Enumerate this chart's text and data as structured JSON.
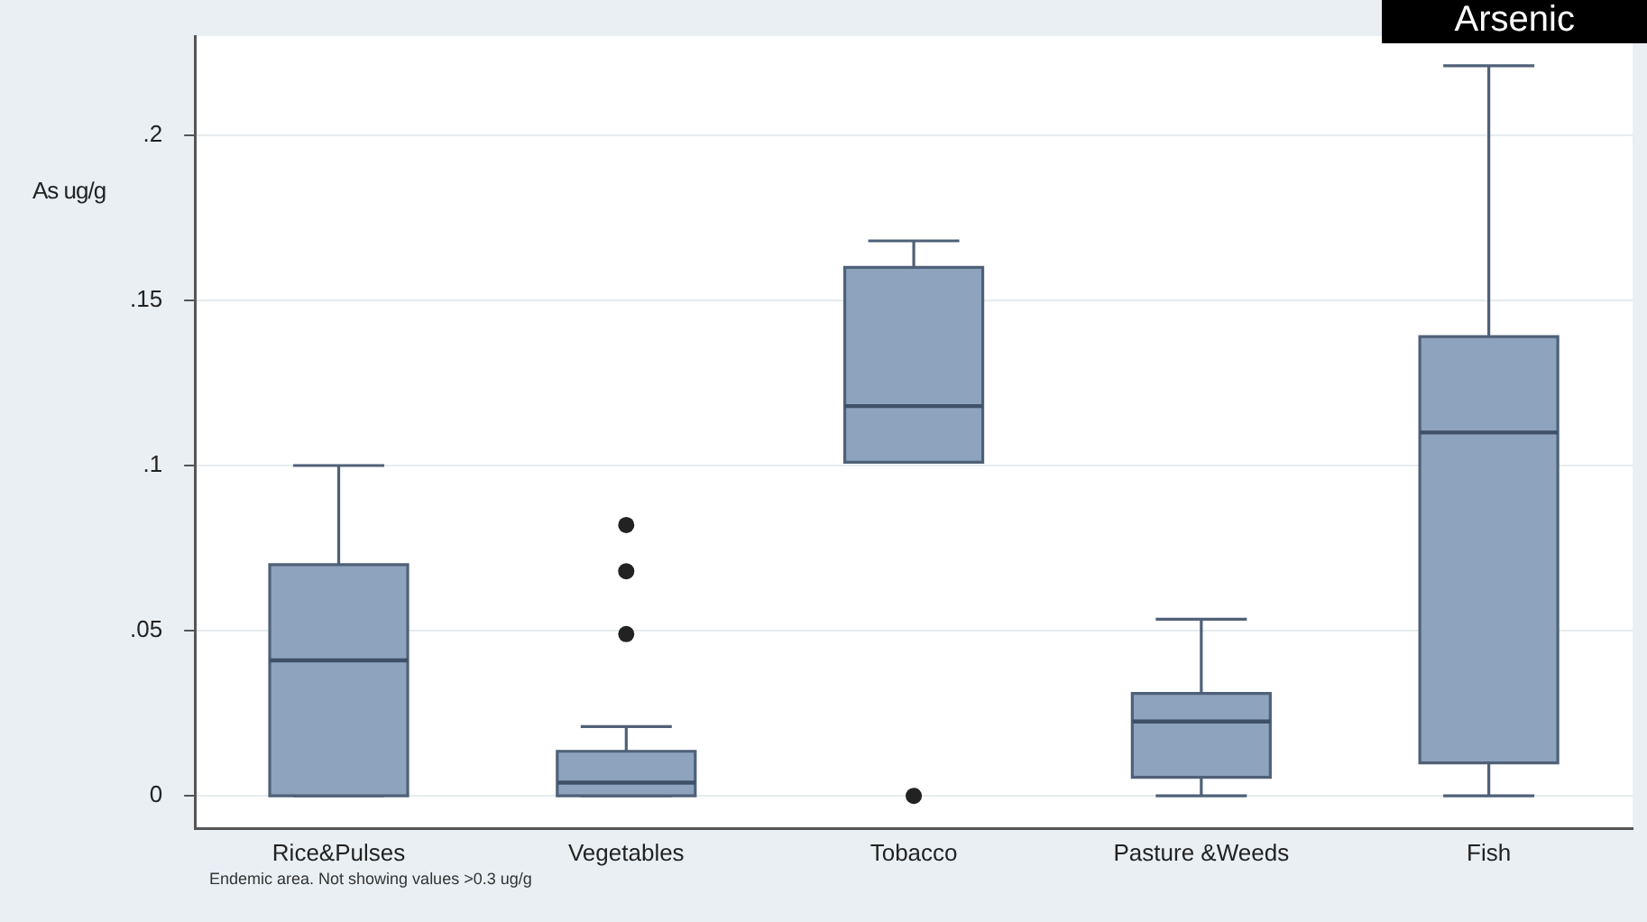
{
  "chart_data": {
    "type": "box",
    "title": "Arsenic",
    "ylabel": "As ug/g",
    "annotations": [
      "Endemic area. Not showing values >0.3 ug/g"
    ],
    "categories": [
      "Rice&Pulses",
      "Vegetables",
      "Tobacco",
      "Pasture &Weeds",
      "Fish"
    ],
    "color": "#8da3be",
    "boxes": [
      {
        "low": 0,
        "q1": 0,
        "median": 0.041,
        "q3": 0.07,
        "high": 0.1
      },
      {
        "low": 0,
        "q1": 0,
        "median": 0.004,
        "q3": 0.0135,
        "high": 0.021,
        "outliers": [
          0.049,
          0.068,
          0.082
        ]
      },
      {
        "low": 0.101,
        "q1": 0.101,
        "median": 0.118,
        "q3": 0.16,
        "high": 0.168,
        "outliers": [
          0
        ]
      },
      {
        "low": 0,
        "q1": 0.0056,
        "median": 0.0225,
        "q3": 0.031,
        "high": 0.0535
      },
      {
        "low": 0,
        "q1": 0.01,
        "median": 0.11,
        "q3": 0.139,
        "high": 0.221
      }
    ],
    "ylim": [
      -0.01,
      0.23
    ],
    "yticks": [
      {
        "value": 0,
        "label": "0"
      },
      {
        "value": 0.05,
        "label": ".05"
      },
      {
        "value": 0.1,
        "label": ".1"
      },
      {
        "value": 0.15,
        "label": ".15"
      },
      {
        "value": 0.2,
        "label": ".2"
      }
    ],
    "grid": "y",
    "legend": false
  }
}
